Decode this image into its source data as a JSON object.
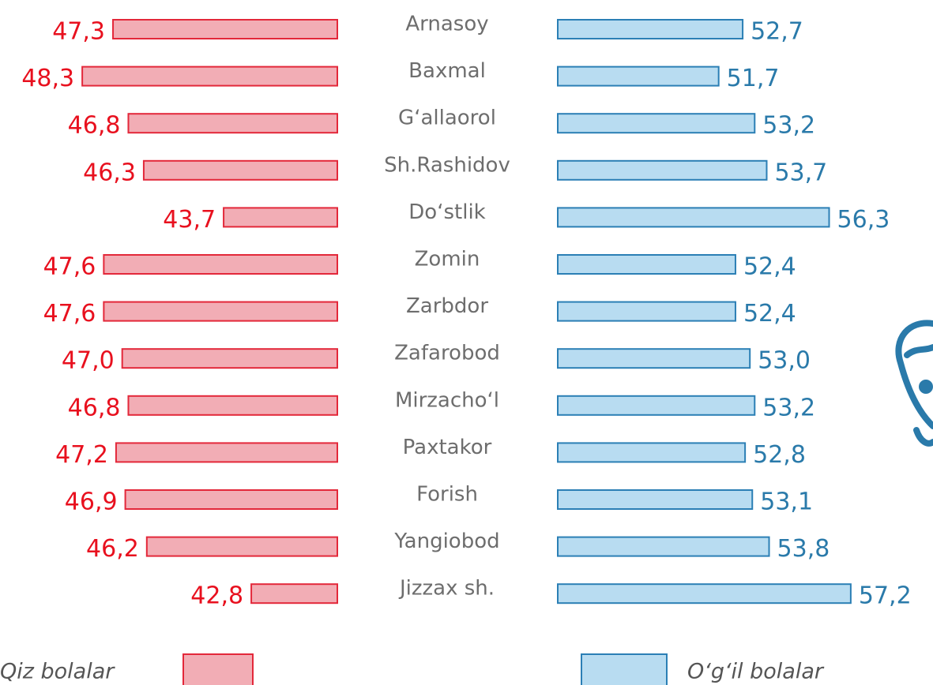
{
  "chart_data": {
    "type": "butterfly-bar",
    "categories": [
      "Arnasoy",
      "Baxmal",
      "G‘allaorol",
      "Sh.Rashidov",
      "Do‘stlik",
      "Zomin",
      "Zarbdor",
      "Zafarobod",
      "Mirzacho‘l",
      "Paxtakor",
      "Forish",
      "Yangiobod",
      "Jizzax sh."
    ],
    "series": [
      {
        "name": "Qiz bolalar",
        "color": "#f2adb5",
        "stroke": "#e3283a",
        "label_color": "#e8101e",
        "xlim": [
          40,
          50
        ],
        "values": [
          47.3,
          48.3,
          46.8,
          46.3,
          43.7,
          47.6,
          47.6,
          47.0,
          46.8,
          47.2,
          46.9,
          46.2,
          42.8
        ],
        "value_labels": [
          "47,3",
          "48,3",
          "46,8",
          "46,3",
          "43,7",
          "47,6",
          "47,6",
          "47,0",
          "46,8",
          "47,2",
          "46,9",
          "46,2",
          "42,8"
        ]
      },
      {
        "name": "O‘g‘il bolalar",
        "color": "#b8dcf1",
        "stroke": "#2b7fb5",
        "label_color": "#2a7aaa",
        "xlim": [
          45,
          60
        ],
        "values": [
          52.7,
          51.7,
          53.2,
          53.7,
          56.3,
          52.4,
          52.4,
          53.0,
          53.2,
          52.8,
          53.1,
          53.8,
          57.2
        ],
        "value_labels": [
          "52,7",
          "51,7",
          "53,2",
          "53,7",
          "56,3",
          "52,4",
          "52,4",
          "53,0",
          "53,2",
          "52,8",
          "53,1",
          "53,8",
          "57,2"
        ]
      }
    ]
  }
}
